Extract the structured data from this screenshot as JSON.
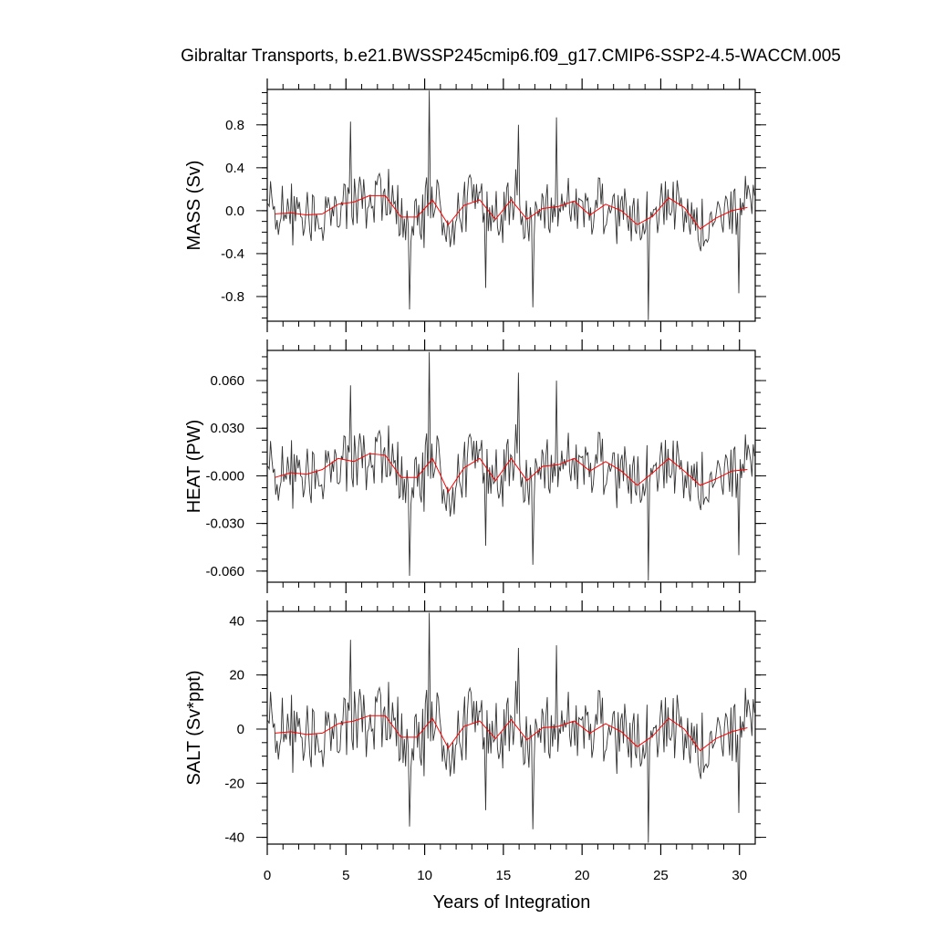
{
  "title": "Gibraltar Transports, b.e21.BWSSP245cmip6.f09_g17.CMIP6-SSP2-4.5-WACCM.005",
  "xlabel": "Years of Integration",
  "colors": {
    "monthly": "#333333",
    "annual": "#ff0000",
    "axes": "#000000"
  },
  "chart_data": [
    {
      "type": "line",
      "name": "MASS",
      "ylabel": "MASS (Sv)",
      "xlim": [
        0,
        31
      ],
      "ylim": [
        -1.03,
        1.13
      ],
      "yticks": [
        -0.8,
        -0.4,
        0.0,
        0.4,
        0.8
      ],
      "ytick_labels": [
        "-0.8",
        "-0.4",
        "0.0",
        "0.4",
        "0.8"
      ],
      "xticks": [
        0,
        5,
        10,
        15,
        20,
        25,
        30
      ],
      "xtick_labels": [
        "0",
        "5",
        "10",
        "15",
        "20",
        "25",
        "30"
      ],
      "annual": {
        "x": [
          0.5,
          1.5,
          2.5,
          3.5,
          4.5,
          5.5,
          6.5,
          7.5,
          8.5,
          9.5,
          10.5,
          11.5,
          12.5,
          13.5,
          14.5,
          15.5,
          16.5,
          17.5,
          18.5,
          19.5,
          20.5,
          21.5,
          22.5,
          23.5,
          24.5,
          25.5,
          26.5,
          27.5,
          28.5,
          29.5,
          30.5
        ],
        "y": [
          -0.03,
          -0.02,
          -0.04,
          -0.03,
          0.06,
          0.08,
          0.14,
          0.14,
          -0.06,
          -0.06,
          0.1,
          -0.13,
          0.05,
          0.1,
          -0.08,
          0.1,
          -0.08,
          0.02,
          0.04,
          0.09,
          -0.04,
          0.06,
          0.0,
          -0.13,
          -0.05,
          0.12,
          0.03,
          -0.17,
          -0.07,
          0.0,
          0.03
        ]
      },
      "monthly_spikes": {
        "x": [
          5.25,
          10.25,
          9.0,
          24.2,
          16.85,
          18.35,
          15.95,
          29.95,
          13.85
        ],
        "y": [
          0.83,
          1.12,
          -0.92,
          -1.02,
          -0.9,
          0.87,
          0.8,
          -0.77,
          -0.72
        ]
      }
    },
    {
      "type": "line",
      "name": "HEAT",
      "ylabel": "HEAT (PW)",
      "xlim": [
        0,
        31
      ],
      "ylim": [
        -0.067,
        0.079
      ],
      "yticks": [
        -0.06,
        -0.03,
        0.0,
        0.03,
        0.06
      ],
      "ytick_labels": [
        "-0.060",
        "-0.030",
        "-0.000",
        "0.030",
        "0.060"
      ],
      "xticks": [
        0,
        5,
        10,
        15,
        20,
        25,
        30
      ],
      "xtick_labels": [
        "0",
        "5",
        "10",
        "15",
        "20",
        "25",
        "30"
      ],
      "annual": {
        "x": [
          0.5,
          1.5,
          2.5,
          3.5,
          4.5,
          5.5,
          6.5,
          7.5,
          8.5,
          9.5,
          10.5,
          11.5,
          12.5,
          13.5,
          14.5,
          15.5,
          16.5,
          17.5,
          18.5,
          19.5,
          20.5,
          21.5,
          22.5,
          23.5,
          24.5,
          25.5,
          26.5,
          27.5,
          28.5,
          29.5,
          30.5
        ],
        "y": [
          -0.001,
          0.002,
          0.001,
          0.004,
          0.011,
          0.009,
          0.014,
          0.013,
          -0.001,
          -0.001,
          0.011,
          -0.01,
          0.005,
          0.011,
          -0.003,
          0.011,
          -0.003,
          0.006,
          0.007,
          0.011,
          0.003,
          0.009,
          0.003,
          -0.006,
          0.002,
          0.011,
          0.003,
          -0.006,
          -0.002,
          0.003,
          0.004
        ]
      },
      "monthly_spikes": {
        "x": [
          5.25,
          10.25,
          9.0,
          24.2,
          16.85,
          18.35,
          15.95,
          29.95,
          13.85
        ],
        "y": [
          0.057,
          0.078,
          -0.063,
          -0.066,
          -0.056,
          0.06,
          0.065,
          -0.05,
          -0.044
        ]
      }
    },
    {
      "type": "line",
      "name": "SALT",
      "ylabel": "SALT (Sv*ppt)",
      "xlim": [
        0,
        31
      ],
      "ylim": [
        -42.5,
        43.5
      ],
      "yticks": [
        -40,
        -20,
        0,
        20,
        40
      ],
      "ytick_labels": [
        "-40",
        "-20",
        "0",
        "20",
        "40"
      ],
      "xticks": [
        0,
        5,
        10,
        15,
        20,
        25,
        30
      ],
      "xtick_labels": [
        "0",
        "5",
        "10",
        "15",
        "20",
        "25",
        "30"
      ],
      "annual": {
        "x": [
          0.5,
          1.5,
          2.5,
          3.5,
          4.5,
          5.5,
          6.5,
          7.5,
          8.5,
          9.5,
          10.5,
          11.5,
          12.5,
          13.5,
          14.5,
          15.5,
          16.5,
          17.5,
          18.5,
          19.5,
          20.5,
          21.5,
          22.5,
          23.5,
          24.5,
          25.5,
          26.5,
          27.5,
          28.5,
          29.5,
          30.5
        ],
        "y": [
          -1.5,
          -1.0,
          -2.0,
          -1.5,
          2.0,
          3.0,
          5.0,
          5.0,
          -3.0,
          -3.0,
          4.0,
          -7.0,
          1.0,
          3.0,
          -3.5,
          3.5,
          -4.0,
          0.5,
          1.0,
          3.0,
          -1.5,
          2.0,
          -1.0,
          -6.5,
          -2.5,
          4.0,
          0.0,
          -8.0,
          -3.5,
          -1.0,
          0.5
        ]
      },
      "monthly_spikes": {
        "x": [
          5.25,
          10.25,
          9.0,
          24.2,
          16.85,
          18.35,
          15.95,
          29.95,
          13.85
        ],
        "y": [
          33,
          43,
          -36,
          -42,
          -37,
          31,
          30,
          -31,
          -30
        ]
      }
    }
  ]
}
